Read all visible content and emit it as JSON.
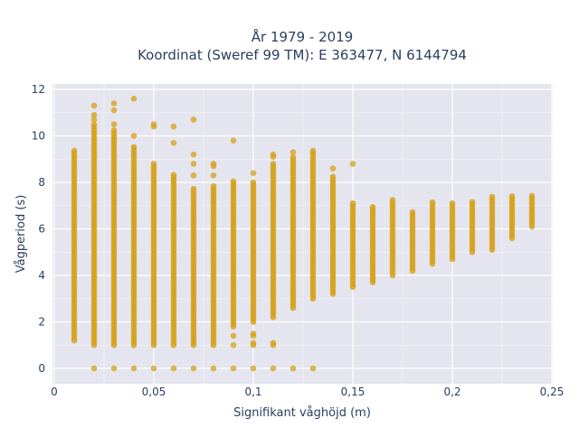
{
  "chart_data": {
    "type": "scatter",
    "title_lines": [
      "År 1979 - 2019",
      "Koordinat (Sweref 99 TM): E 363477, N 6144794"
    ],
    "xlabel": "Signifikant våghöjd (m)",
    "ylabel": "Vågperiod (s)",
    "xlim": [
      0,
      0.25
    ],
    "ylim": [
      -0.6,
      12.2
    ],
    "x_ticks": [
      0,
      0.05,
      0.1,
      0.15,
      0.2,
      0.25
    ],
    "x_tick_labels": [
      "0",
      "0,05",
      "0,1",
      "0,15",
      "0,2",
      "0,25"
    ],
    "y_ticks": [
      0,
      2,
      4,
      6,
      8,
      10,
      12
    ],
    "y_tick_labels": [
      "0",
      "2",
      "4",
      "6",
      "8",
      "10",
      "12"
    ],
    "grid": true,
    "legend": "none",
    "marker_color": "#d4a017",
    "plot_background": "#e5e5ef",
    "series": [
      {
        "values_by_x": [
          {
            "x": 0.01,
            "y_min": 1.2,
            "y_max": 9.4,
            "outliers": []
          },
          {
            "x": 0.02,
            "y_min": 1.0,
            "y_max": 10.5,
            "outliers": [
              0,
              10.7,
              10.9,
              11.3
            ]
          },
          {
            "x": 0.03,
            "y_min": 1.0,
            "y_max": 10.3,
            "outliers": [
              0,
              10.5,
              11.1,
              11.4
            ]
          },
          {
            "x": 0.04,
            "y_min": 1.0,
            "y_max": 9.6,
            "outliers": [
              0,
              10.0,
              11.6
            ]
          },
          {
            "x": 0.05,
            "y_min": 1.0,
            "y_max": 8.8,
            "outliers": [
              0,
              10.4,
              10.5
            ]
          },
          {
            "x": 0.06,
            "y_min": 1.0,
            "y_max": 8.4,
            "outliers": [
              0,
              9.7,
              10.4
            ]
          },
          {
            "x": 0.07,
            "y_min": 1.0,
            "y_max": 7.8,
            "outliers": [
              0,
              8.3,
              8.8,
              9.2,
              10.7
            ]
          },
          {
            "x": 0.08,
            "y_min": 1.0,
            "y_max": 7.9,
            "outliers": [
              0,
              8.3,
              8.7,
              8.8
            ]
          },
          {
            "x": 0.09,
            "y_min": 1.8,
            "y_max": 8.1,
            "outliers": [
              0,
              1.0,
              1.4,
              9.8
            ]
          },
          {
            "x": 0.1,
            "y_min": 2.0,
            "y_max": 8.1,
            "outliers": [
              0,
              1.0,
              1.1,
              1.4,
              1.5,
              8.4
            ]
          },
          {
            "x": 0.11,
            "y_min": 2.2,
            "y_max": 8.9,
            "outliers": [
              0,
              1.0,
              1.1,
              9.1,
              9.2
            ]
          },
          {
            "x": 0.12,
            "y_min": 2.6,
            "y_max": 9.1,
            "outliers": [
              0,
              9.3
            ]
          },
          {
            "x": 0.13,
            "y_min": 3.0,
            "y_max": 9.4,
            "outliers": [
              0
            ]
          },
          {
            "x": 0.14,
            "y_min": 3.2,
            "y_max": 8.3,
            "outliers": [
              8.6
            ]
          },
          {
            "x": 0.15,
            "y_min": 3.5,
            "y_max": 7.2,
            "outliers": [
              8.8
            ]
          },
          {
            "x": 0.16,
            "y_min": 3.7,
            "y_max": 7.0,
            "outliers": []
          },
          {
            "x": 0.17,
            "y_min": 4.0,
            "y_max": 7.3,
            "outliers": []
          },
          {
            "x": 0.18,
            "y_min": 4.2,
            "y_max": 6.8,
            "outliers": []
          },
          {
            "x": 0.19,
            "y_min": 4.5,
            "y_max": 7.2,
            "outliers": []
          },
          {
            "x": 0.2,
            "y_min": 4.7,
            "y_max": 7.2,
            "outliers": []
          },
          {
            "x": 0.21,
            "y_min": 5.0,
            "y_max": 7.2,
            "outliers": []
          },
          {
            "x": 0.22,
            "y_min": 5.1,
            "y_max": 7.4,
            "outliers": []
          },
          {
            "x": 0.23,
            "y_min": 5.6,
            "y_max": 7.5,
            "outliers": []
          },
          {
            "x": 0.24,
            "y_min": 6.1,
            "y_max": 7.5,
            "outliers": []
          }
        ]
      }
    ]
  }
}
